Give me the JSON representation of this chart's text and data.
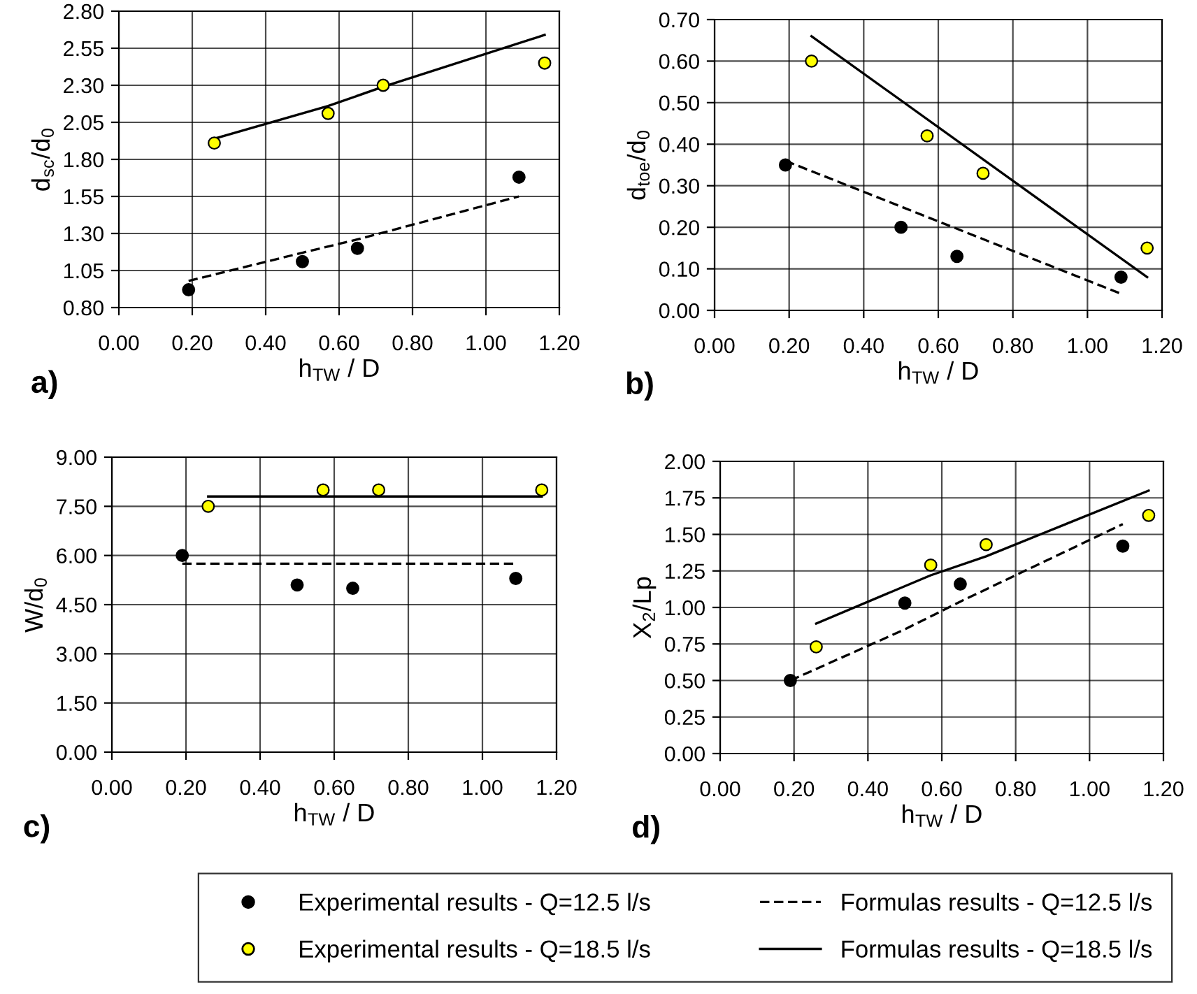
{
  "chart_data": [
    {
      "type": "scatter",
      "xlabel": "h$_{TW}$ / D",
      "ylabel": "d$_{sc}$/d$_{0}$",
      "annotations": [
        "a)"
      ],
      "legend": "bottom",
      "xlim": [
        0,
        1.2
      ],
      "xticks": [
        {
          "value": 0,
          "label": "0.00"
        },
        {
          "value": 0.2,
          "label": "0.20"
        },
        {
          "value": 0.4,
          "label": "0.40"
        },
        {
          "value": 0.6,
          "label": "0.60"
        },
        {
          "value": 0.8,
          "label": "0.80"
        },
        {
          "value": 1.0,
          "label": "1.00"
        },
        {
          "value": 1.2,
          "label": "1.20"
        }
      ],
      "ylim": [
        0.8,
        2.8
      ],
      "yticks": [
        {
          "value": 0.8,
          "label": "0.80"
        },
        {
          "value": 1.05,
          "label": "1.05"
        },
        {
          "value": 1.3,
          "label": "1.30"
        },
        {
          "value": 1.55,
          "label": "1.55"
        },
        {
          "value": 1.8,
          "label": "1.80"
        },
        {
          "value": 2.05,
          "label": "2.05"
        },
        {
          "value": 2.3,
          "label": "2.30"
        },
        {
          "value": 2.55,
          "label": "2.55"
        },
        {
          "value": 2.8,
          "label": "2.80"
        }
      ],
      "grid": true,
      "series": [
        {
          "name": "Experimental results - Q=12.5 l/s",
          "marker": "circle",
          "color": "#000000",
          "x": [
            0.19,
            0.5,
            0.65,
            1.09
          ],
          "values": [
            0.92,
            1.11,
            1.2,
            1.68
          ]
        },
        {
          "name": "Experimental results - Q=18.5 l/s",
          "marker": "circle",
          "color": "#ffff00",
          "x": [
            0.26,
            0.57,
            0.72,
            1.16
          ],
          "values": [
            1.91,
            2.11,
            2.3,
            2.45
          ]
        },
        {
          "name": "Formulas results - Q=12.5 l/s",
          "type": "line",
          "line_style": "dashed",
          "color": "#000000",
          "x": [
            0.19,
            0.5,
            0.65,
            1.09
          ],
          "values": [
            0.98,
            1.17,
            1.26,
            1.55
          ]
        },
        {
          "name": "Formulas results - Q=18.5 l/s",
          "type": "line",
          "line_style": "solid",
          "color": "#000000",
          "x": [
            0.26,
            0.57,
            0.72,
            1.16
          ],
          "values": [
            1.94,
            2.16,
            2.29,
            2.64
          ]
        }
      ]
    },
    {
      "type": "scatter",
      "xlabel": "h$_{TW}$ / D",
      "ylabel": "d$_{toe}$/d$_{0}$",
      "annotations": [
        "b)"
      ],
      "xlim": [
        0,
        1.2
      ],
      "xticks": [
        {
          "value": 0,
          "label": "0.00"
        },
        {
          "value": 0.2,
          "label": "0.20"
        },
        {
          "value": 0.4,
          "label": "0.40"
        },
        {
          "value": 0.6,
          "label": "0.60"
        },
        {
          "value": 0.8,
          "label": "0.80"
        },
        {
          "value": 1.0,
          "label": "1.00"
        },
        {
          "value": 1.2,
          "label": "1.20"
        }
      ],
      "ylim": [
        0,
        0.7
      ],
      "yticks": [
        {
          "value": 0,
          "label": "0.00"
        },
        {
          "value": 0.1,
          "label": "0.10"
        },
        {
          "value": 0.2,
          "label": "0.20"
        },
        {
          "value": 0.3,
          "label": "0.30"
        },
        {
          "value": 0.4,
          "label": "0.40"
        },
        {
          "value": 0.5,
          "label": "0.50"
        },
        {
          "value": 0.6,
          "label": "0.60"
        },
        {
          "value": 0.7,
          "label": "0.70"
        }
      ],
      "grid": true,
      "series": [
        {
          "marker": "circle",
          "color": "#000000",
          "x": [
            0.19,
            0.5,
            0.65,
            1.09
          ],
          "values": [
            0.35,
            0.2,
            0.13,
            0.08
          ]
        },
        {
          "marker": "circle",
          "color": "#ffff00",
          "x": [
            0.26,
            0.57,
            0.72,
            1.16
          ],
          "values": [
            0.6,
            0.42,
            0.33,
            0.15
          ]
        },
        {
          "type": "line",
          "line_style": "dashed",
          "color": "#000000",
          "x": [
            0.19,
            1.09
          ],
          "values": [
            0.36,
            0.04
          ]
        },
        {
          "type": "line",
          "line_style": "solid",
          "color": "#000000",
          "x": [
            0.26,
            1.16
          ],
          "values": [
            0.66,
            0.08
          ]
        }
      ]
    },
    {
      "type": "scatter",
      "xlabel": "h$_{TW}$ / D",
      "ylabel": "W/d$_{0}$",
      "annotations": [
        "c)"
      ],
      "xlim": [
        0,
        1.2
      ],
      "xticks": [
        {
          "value": 0,
          "label": "0.00"
        },
        {
          "value": 0.2,
          "label": "0.20"
        },
        {
          "value": 0.4,
          "label": "0.40"
        },
        {
          "value": 0.6,
          "label": "0.60"
        },
        {
          "value": 0.8,
          "label": "0.80"
        },
        {
          "value": 1.0,
          "label": "1.00"
        },
        {
          "value": 1.2,
          "label": "1.20"
        }
      ],
      "ylim": [
        0,
        9
      ],
      "yticks": [
        {
          "value": 0,
          "label": "0.00"
        },
        {
          "value": 1.5,
          "label": "1.50"
        },
        {
          "value": 3,
          "label": "3.00"
        },
        {
          "value": 4.5,
          "label": "4.50"
        },
        {
          "value": 6,
          "label": "6.00"
        },
        {
          "value": 7.5,
          "label": "7.50"
        },
        {
          "value": 9,
          "label": "9.00"
        }
      ],
      "grid": true,
      "series": [
        {
          "marker": "circle",
          "color": "#000000",
          "x": [
            0.19,
            0.5,
            0.65,
            1.09
          ],
          "values": [
            6.0,
            5.1,
            5.0,
            5.3
          ]
        },
        {
          "marker": "circle",
          "color": "#ffff00",
          "x": [
            0.26,
            0.57,
            0.72,
            1.16
          ],
          "values": [
            7.5,
            8.0,
            8.0,
            8.0
          ]
        },
        {
          "type": "line",
          "line_style": "dashed",
          "color": "#000000",
          "x": [
            0.19,
            1.09
          ],
          "values": [
            5.75,
            5.75
          ]
        },
        {
          "type": "line",
          "line_style": "solid",
          "color": "#000000",
          "x": [
            0.26,
            1.16
          ],
          "values": [
            7.8,
            7.8
          ]
        }
      ]
    },
    {
      "type": "scatter",
      "xlabel": "h$_{TW}$ / D",
      "ylabel": "X$_{2}$/Lp",
      "annotations": [
        "d)"
      ],
      "xlim": [
        0,
        1.2
      ],
      "xticks": [
        {
          "value": 0,
          "label": "0.00"
        },
        {
          "value": 0.2,
          "label": "0.20"
        },
        {
          "value": 0.4,
          "label": "0.40"
        },
        {
          "value": 0.6,
          "label": "0.60"
        },
        {
          "value": 0.8,
          "label": "0.80"
        },
        {
          "value": 1.0,
          "label": "1.00"
        },
        {
          "value": 1.2,
          "label": "1.20"
        }
      ],
      "ylim": [
        0,
        2
      ],
      "yticks": [
        {
          "value": 0,
          "label": "0.00"
        },
        {
          "value": 0.25,
          "label": "0.25"
        },
        {
          "value": 0.5,
          "label": "0.50"
        },
        {
          "value": 0.75,
          "label": "0.75"
        },
        {
          "value": 1.0,
          "label": "1.00"
        },
        {
          "value": 1.25,
          "label": "1.25"
        },
        {
          "value": 1.5,
          "label": "1.50"
        },
        {
          "value": 1.75,
          "label": "1.75"
        },
        {
          "value": 2.0,
          "label": "2.00"
        }
      ],
      "grid": true,
      "series": [
        {
          "marker": "circle",
          "color": "#000000",
          "x": [
            0.19,
            0.5,
            0.65,
            1.09
          ],
          "values": [
            0.5,
            1.03,
            1.16,
            1.42
          ]
        },
        {
          "marker": "circle",
          "color": "#ffff00",
          "x": [
            0.26,
            0.57,
            0.72,
            1.16
          ],
          "values": [
            0.73,
            1.29,
            1.43,
            1.63
          ]
        },
        {
          "type": "line",
          "line_style": "dashed",
          "color": "#000000",
          "x": [
            0.19,
            0.5,
            0.65,
            1.09
          ],
          "values": [
            0.5,
            0.85,
            1.04,
            1.57
          ]
        },
        {
          "type": "line",
          "line_style": "solid",
          "color": "#000000",
          "x": [
            0.26,
            0.57,
            0.72,
            1.16
          ],
          "values": [
            0.89,
            1.22,
            1.35,
            1.8
          ]
        }
      ]
    }
  ]
}
